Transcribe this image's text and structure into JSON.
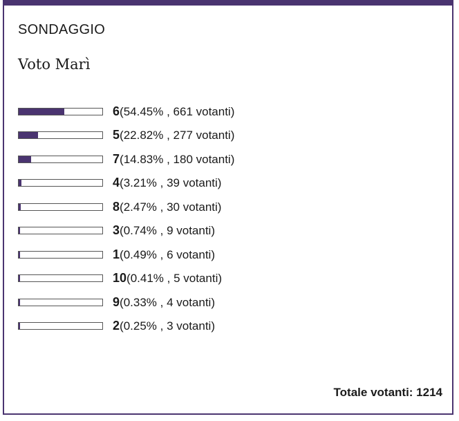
{
  "poll": {
    "label": "SONDAGGIO",
    "question": "Voto Marì",
    "accent_color": "#4a3470",
    "results": [
      {
        "value": "6",
        "percent": 54.45,
        "percent_label": "54.45%",
        "voters_label": "661 votanti"
      },
      {
        "value": "5",
        "percent": 22.82,
        "percent_label": "22.82%",
        "voters_label": "277 votanti"
      },
      {
        "value": "7",
        "percent": 14.83,
        "percent_label": "14.83%",
        "voters_label": "180 votanti"
      },
      {
        "value": "4",
        "percent": 3.21,
        "percent_label": "3.21%",
        "voters_label": "39 votanti"
      },
      {
        "value": "8",
        "percent": 2.47,
        "percent_label": "2.47%",
        "voters_label": "30 votanti"
      },
      {
        "value": "3",
        "percent": 0.74,
        "percent_label": "0.74%",
        "voters_label": "9 votanti"
      },
      {
        "value": "1",
        "percent": 0.49,
        "percent_label": "0.49%",
        "voters_label": "6 votanti"
      },
      {
        "value": "10",
        "percent": 0.41,
        "percent_label": "0.41%",
        "voters_label": "5 votanti"
      },
      {
        "value": "9",
        "percent": 0.33,
        "percent_label": "0.33%",
        "voters_label": "4 votanti"
      },
      {
        "value": "2",
        "percent": 0.25,
        "percent_label": "0.25%",
        "voters_label": "3 votanti"
      }
    ],
    "total_label": "Totale votanti: 1214"
  }
}
